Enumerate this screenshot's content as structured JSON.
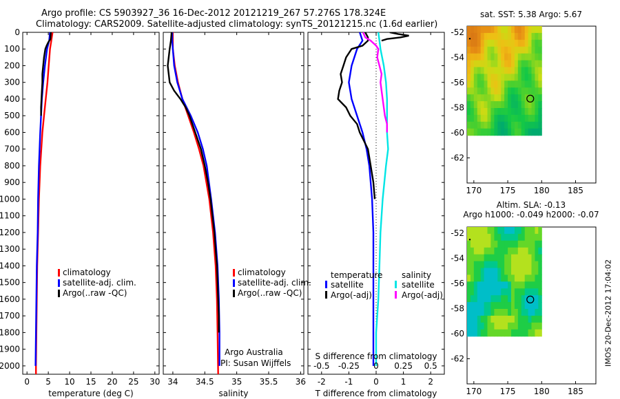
{
  "header": {
    "line1": "Argo profile: CS 5903927_36 16-Dec-2012 20121219_267 57.276S 178.324E",
    "line2": "Climatology: CARS2009. Satellite-adjusted climatology: synTS_20121215.nc (1.6d earlier)"
  },
  "side_text": "IMOS 20-Dec-2012 17:04:02",
  "chart_data": [
    {
      "type": "line",
      "id": "temperature",
      "xlabel": "temperature (deg C)",
      "xlim": [
        -1,
        31
      ],
      "ylim": [
        0,
        2050
      ],
      "y_reversed": true,
      "xticks": [
        0,
        5,
        10,
        15,
        20,
        25,
        30
      ],
      "yticks": [
        0,
        100,
        200,
        300,
        400,
        500,
        600,
        700,
        800,
        900,
        1000,
        1100,
        1200,
        1300,
        1400,
        1500,
        1600,
        1700,
        1800,
        1900,
        2000
      ],
      "legend": [
        "climatology",
        "satellite-adj. clim.",
        "Argo(..raw -QC)"
      ],
      "legend_position": "bottom-center",
      "series": [
        {
          "name": "climatology",
          "color": "#ff0000",
          "depth": [
            0,
            50,
            100,
            200,
            300,
            400,
            500,
            600,
            800,
            1000,
            1200,
            1400,
            1600,
            1800,
            2000,
            2050
          ],
          "values": [
            6.0,
            5.7,
            5.4,
            5.1,
            4.8,
            4.4,
            4.0,
            3.6,
            3.1,
            2.8,
            2.6,
            2.4,
            2.3,
            2.2,
            2.1,
            2.1
          ]
        },
        {
          "name": "satellite-adj. clim.",
          "color": "#0000ff",
          "depth": [
            0,
            50,
            100,
            200,
            300,
            400,
            500,
            600,
            800,
            1000,
            1200,
            1400,
            1600,
            1800,
            2000
          ],
          "values": [
            5.4,
            5.2,
            4.7,
            4.2,
            3.8,
            3.5,
            3.3,
            3.1,
            2.8,
            2.6,
            2.5,
            2.3,
            2.2,
            2.1,
            2.0
          ]
        },
        {
          "name": "Argo(..raw -QC)",
          "color": "#000000",
          "depth": [
            0,
            40,
            60,
            80,
            100,
            150,
            200,
            250,
            300,
            350,
            400,
            450,
            500
          ],
          "values": [
            5.6,
            5.5,
            5.0,
            4.6,
            4.3,
            4.0,
            3.8,
            3.6,
            3.6,
            3.5,
            3.4,
            3.3,
            3.3
          ]
        }
      ]
    },
    {
      "type": "line",
      "id": "salinity",
      "xlabel": "salinity",
      "xlim": [
        33.85,
        36.05
      ],
      "ylim": [
        0,
        2050
      ],
      "y_reversed": true,
      "xticks": [
        34,
        34.5,
        35,
        35.5,
        36
      ],
      "legend": [
        "climatology",
        "satellite-adj. clim.",
        "Argo(..raw -QC)"
      ],
      "legend_position": "bottom-center",
      "annotations": [
        "Argo Australia",
        "PI: Susan Wijffels"
      ],
      "series": [
        {
          "name": "climatology",
          "color": "#ff0000",
          "depth": [
            0,
            50,
            100,
            200,
            300,
            400,
            500,
            600,
            700,
            800,
            1000,
            1200,
            1400,
            1600,
            1800,
            2050
          ],
          "values": [
            34.0,
            34.0,
            34.0,
            34.03,
            34.08,
            34.15,
            34.24,
            34.33,
            34.41,
            34.48,
            34.57,
            34.63,
            34.67,
            34.69,
            34.7,
            34.71
          ]
        },
        {
          "name": "satellite-adj. clim.",
          "color": "#0000ff",
          "depth": [
            0,
            50,
            100,
            200,
            300,
            400,
            500,
            600,
            700,
            800,
            1000,
            1200,
            1400,
            1600,
            1800,
            2000
          ],
          "values": [
            33.99,
            33.99,
            34.0,
            34.02,
            34.07,
            34.15,
            34.28,
            34.39,
            34.47,
            34.53,
            34.6,
            34.66,
            34.7,
            34.72,
            34.73,
            34.73
          ]
        },
        {
          "name": "Argo(..raw -QC)",
          "color": "#000000",
          "depth": [
            0,
            50,
            100,
            200,
            300,
            350,
            400,
            450,
            500,
            600,
            700,
            800,
            900,
            1000,
            1100,
            1200,
            1300,
            1400,
            1500,
            1600,
            1700,
            1800
          ],
          "values": [
            33.98,
            33.97,
            33.95,
            33.92,
            33.95,
            34.02,
            34.12,
            34.2,
            34.26,
            34.35,
            34.44,
            34.5,
            34.55,
            34.59,
            34.62,
            34.65,
            34.67,
            34.69,
            34.7,
            34.71,
            34.72,
            34.72
          ]
        }
      ]
    },
    {
      "type": "line",
      "id": "difference",
      "xlabel": "T difference from climatology",
      "x2label": "S difference from climatology",
      "xlim": [
        -2.5,
        2.5
      ],
      "x2lim": [
        -0.625,
        0.625
      ],
      "ylim": [
        0,
        2050
      ],
      "y_reversed": true,
      "xticks": [
        -2,
        -1,
        0,
        1,
        2
      ],
      "x2ticks": [
        -0.5,
        -0.25,
        0,
        0.25,
        0.5
      ],
      "x2tick_labels": [
        "-0.5",
        "-0.25",
        "0",
        "0.25",
        "0.5"
      ],
      "legend_groups": [
        {
          "title": "temperature",
          "items": [
            "satellite",
            "Argo(-adj)"
          ]
        },
        {
          "title": "salinity",
          "items": [
            "satellite",
            "Argo(-adj)"
          ]
        }
      ],
      "legend_position": "bottom-center",
      "series": [
        {
          "name": "temperature satellite",
          "color": "#0000ff",
          "axis": "T",
          "depth": [
            0,
            50,
            100,
            200,
            300,
            400,
            500,
            600,
            700,
            800,
            900,
            1000,
            1200,
            1400,
            1600,
            1800,
            2000
          ],
          "values": [
            -0.6,
            -0.5,
            -0.7,
            -0.9,
            -1.0,
            -0.9,
            -0.7,
            -0.5,
            -0.35,
            -0.25,
            -0.2,
            -0.15,
            -0.1,
            -0.1,
            -0.1,
            -0.1,
            -0.1
          ]
        },
        {
          "name": "temperature Argo(-adj)",
          "color": "#000000",
          "axis": "T",
          "depth": [
            0,
            30,
            50,
            80,
            100,
            150,
            200,
            250,
            300,
            350,
            400,
            450,
            500,
            550,
            600,
            650,
            700,
            800,
            900,
            1000
          ],
          "values": [
            -0.4,
            -0.3,
            -0.3,
            -0.5,
            -0.9,
            -1.1,
            -1.2,
            -1.3,
            -1.25,
            -1.35,
            -1.4,
            -1.1,
            -0.95,
            -0.7,
            -0.6,
            -0.45,
            -0.3,
            -0.2,
            -0.1,
            -0.05
          ]
        },
        {
          "name": "salinity satellite",
          "color": "#00e5e5",
          "axis": "S",
          "depth": [
            0,
            50,
            100,
            200,
            300,
            400,
            500,
            600,
            700,
            800,
            1000,
            1200,
            1400,
            1600,
            1800,
            2000
          ],
          "values": [
            0.02,
            0.03,
            0.04,
            0.07,
            0.09,
            0.1,
            0.1,
            0.1,
            0.11,
            0.09,
            0.06,
            0.04,
            0.03,
            0.02,
            0.0,
            0.0
          ]
        },
        {
          "name": "salinity Argo(-adj)",
          "color": "#ff00ff",
          "axis": "S",
          "depth": [
            0,
            30,
            50,
            80,
            100,
            150,
            200,
            250,
            300,
            350,
            400,
            450,
            500,
            550,
            600
          ],
          "values": [
            -0.12,
            -0.1,
            -0.05,
            0.0,
            0.02,
            0.01,
            0.03,
            0.05,
            0.04,
            0.05,
            0.06,
            0.07,
            0.08,
            0.1,
            0.1
          ]
        },
        {
          "name": "Argo near-surface T difference",
          "color": "#000000",
          "axis": "T",
          "depth": [
            0,
            10,
            20,
            30,
            40,
            50
          ],
          "values": [
            0.5,
            0.8,
            1.2,
            0.9,
            0.4,
            0.2
          ]
        }
      ]
    },
    {
      "type": "heatmap",
      "id": "sst_map",
      "title": "sat. SST: 5.38 Argo: 5.67",
      "xlim": [
        169,
        188
      ],
      "ylim": [
        -64,
        -51.5
      ],
      "xticks": [
        170,
        175,
        180,
        185
      ],
      "yticks": [
        -52,
        -54,
        -56,
        -58,
        -60,
        -62
      ],
      "ytick_labels": [
        "-52",
        "-54",
        "-56",
        "-58",
        "-60",
        "-62"
      ],
      "data_extent": {
        "lon": [
          169,
          180
        ],
        "lat": [
          -60.2,
          -51.5
        ]
      },
      "marker": {
        "lon": 178.324,
        "lat": -57.276
      }
    },
    {
      "type": "heatmap",
      "id": "sla_map",
      "title": "Altim. SLA: -0.13",
      "subtitle": "Argo h1000: -0.049 h2000: -0.07",
      "xlim": [
        169,
        188
      ],
      "ylim": [
        -64,
        -51.5
      ],
      "xticks": [
        170,
        175,
        180,
        185
      ],
      "yticks": [
        -52,
        -54,
        -56,
        -58,
        -60,
        -62
      ],
      "ytick_labels": [
        "-52",
        "-54",
        "-56",
        "-58",
        "-60",
        "-62"
      ],
      "data_extent": {
        "lon": [
          169,
          180
        ],
        "lat": [
          -60.2,
          -51.5
        ]
      },
      "marker": {
        "lon": 178.324,
        "lat": -57.276
      }
    }
  ]
}
